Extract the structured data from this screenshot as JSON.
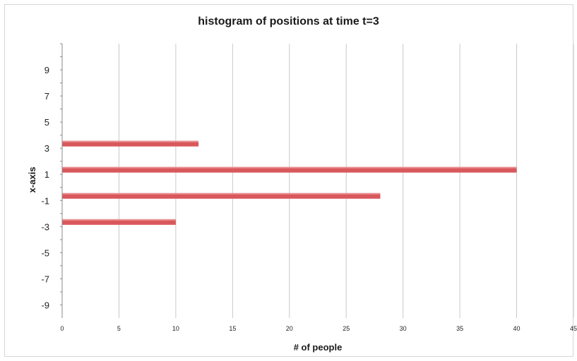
{
  "chart_data": {
    "type": "bar",
    "orientation": "horizontal",
    "title": "histogram of positions at time t=3",
    "xlabel": "# of people",
    "ylabel": "x-axis",
    "categories": [
      3,
      1,
      -1,
      -3
    ],
    "values": [
      12,
      40,
      28,
      10
    ],
    "xlim": [
      0,
      45
    ],
    "xticks": [
      0,
      5,
      10,
      15,
      20,
      25,
      30,
      35,
      40,
      45
    ],
    "ylim": [
      -10,
      11
    ],
    "yticks": [
      9,
      7,
      5,
      3,
      1,
      -1,
      -3,
      -5,
      -7,
      -9
    ],
    "grid": "vertical",
    "legend": "none",
    "bar_color": "#d9585c",
    "grid_color": "#c8c8c8"
  }
}
